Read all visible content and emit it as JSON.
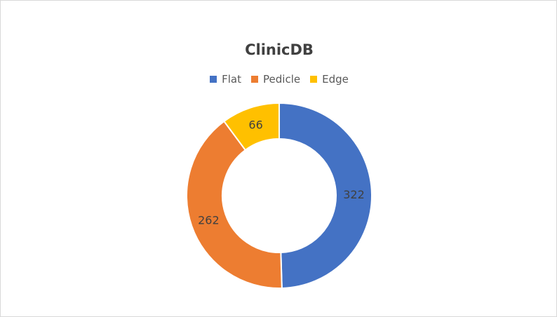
{
  "chart_data": {
    "type": "pie",
    "title": "ClinicDB",
    "legend_position": "top",
    "categories": [
      "Flat",
      "Pedicle",
      "Edge"
    ],
    "values": [
      322,
      262,
      66
    ],
    "colors": [
      "#4472c4",
      "#ed7d31",
      "#ffc000"
    ],
    "data_labels": [
      "322",
      "262",
      "66"
    ]
  }
}
